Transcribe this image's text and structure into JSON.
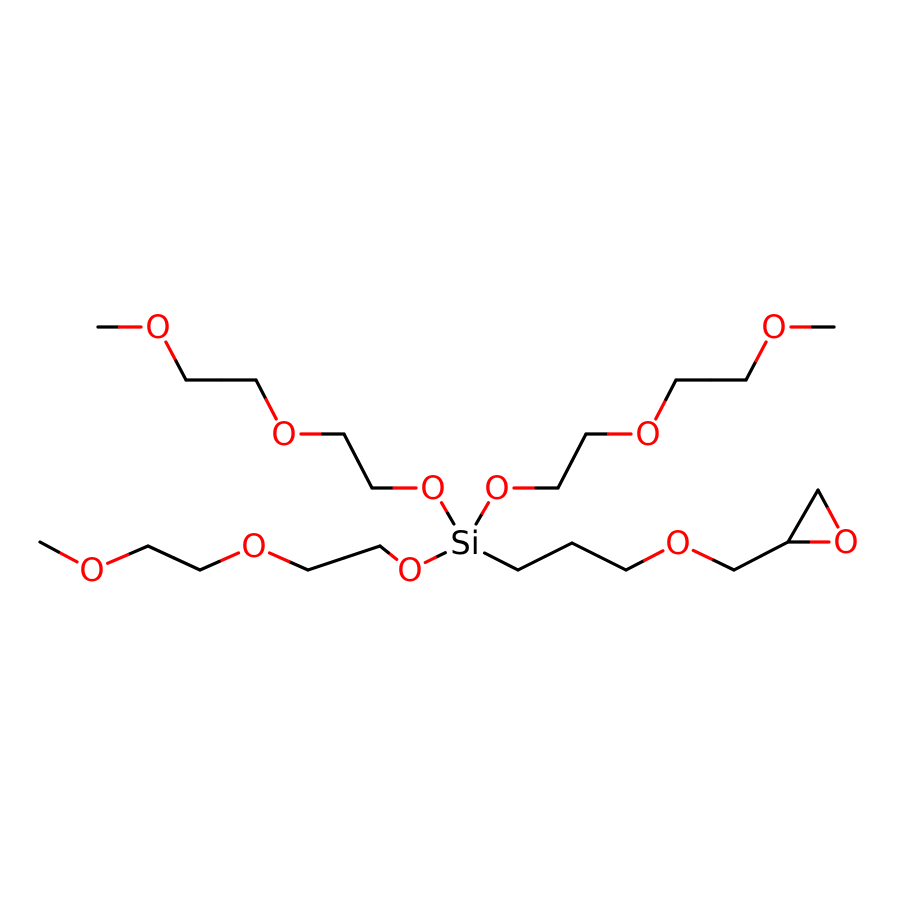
{
  "molecule": {
    "colors": {
      "bond": "#000000",
      "O": "#ff0000",
      "Si": "#000000",
      "background": "#ffffff"
    },
    "atoms": [
      {
        "id": "c1",
        "element": "C"
      },
      {
        "id": "o1",
        "element": "O",
        "label": "O"
      },
      {
        "id": "c2",
        "element": "C"
      },
      {
        "id": "c3",
        "element": "C"
      },
      {
        "id": "o2",
        "element": "O",
        "label": "O"
      },
      {
        "id": "c4",
        "element": "C"
      },
      {
        "id": "c5",
        "element": "C"
      },
      {
        "id": "o3",
        "element": "O",
        "label": "O"
      },
      {
        "id": "si",
        "element": "Si",
        "label": "Si"
      },
      {
        "id": "o4",
        "element": "O",
        "label": "O"
      },
      {
        "id": "c6",
        "element": "C"
      },
      {
        "id": "c7",
        "element": "C"
      },
      {
        "id": "o5",
        "element": "O",
        "label": "O"
      },
      {
        "id": "c8",
        "element": "C"
      },
      {
        "id": "c9",
        "element": "C"
      },
      {
        "id": "o6",
        "element": "O",
        "label": "O"
      },
      {
        "id": "c10",
        "element": "C"
      },
      {
        "id": "o7",
        "element": "O",
        "label": "O"
      },
      {
        "id": "c11",
        "element": "C"
      },
      {
        "id": "c12",
        "element": "C"
      },
      {
        "id": "o8",
        "element": "O",
        "label": "O"
      },
      {
        "id": "c13",
        "element": "C"
      },
      {
        "id": "c14",
        "element": "C"
      },
      {
        "id": "o9",
        "element": "O",
        "label": "O"
      },
      {
        "id": "c15",
        "element": "C"
      },
      {
        "id": "c16",
        "element": "C"
      },
      {
        "id": "c17",
        "element": "C"
      },
      {
        "id": "c18",
        "element": "C"
      },
      {
        "id": "o10",
        "element": "O",
        "label": "O"
      },
      {
        "id": "c19",
        "element": "C"
      },
      {
        "id": "c20",
        "element": "C"
      },
      {
        "id": "c21",
        "element": "C"
      },
      {
        "id": "o11",
        "element": "O",
        "label": "O"
      }
    ],
    "bonds": [
      [
        "c1",
        "o1"
      ],
      [
        "o1",
        "c2"
      ],
      [
        "c2",
        "c3"
      ],
      [
        "c3",
        "o2"
      ],
      [
        "o2",
        "c4"
      ],
      [
        "c4",
        "c5"
      ],
      [
        "c5",
        "o3"
      ],
      [
        "o3",
        "si"
      ],
      [
        "si",
        "o4"
      ],
      [
        "o4",
        "c6"
      ],
      [
        "c6",
        "c7"
      ],
      [
        "c7",
        "o5"
      ],
      [
        "o5",
        "c8"
      ],
      [
        "c8",
        "c9"
      ],
      [
        "c9",
        "o6"
      ],
      [
        "o6",
        "c10"
      ],
      [
        "si",
        "o7"
      ],
      [
        "o7",
        "c11"
      ],
      [
        "c11",
        "c12"
      ],
      [
        "c12",
        "o8"
      ],
      [
        "o8",
        "c13"
      ],
      [
        "c13",
        "c14"
      ],
      [
        "c14",
        "o9"
      ],
      [
        "o9",
        "c15"
      ],
      [
        "si",
        "c16"
      ],
      [
        "c16",
        "c17"
      ],
      [
        "c17",
        "c18"
      ],
      [
        "c18",
        "o10"
      ],
      [
        "o10",
        "c19"
      ],
      [
        "c19",
        "c20"
      ],
      [
        "c20",
        "c21"
      ],
      [
        "c21",
        "o11"
      ],
      [
        "o11",
        "c20"
      ]
    ]
  }
}
